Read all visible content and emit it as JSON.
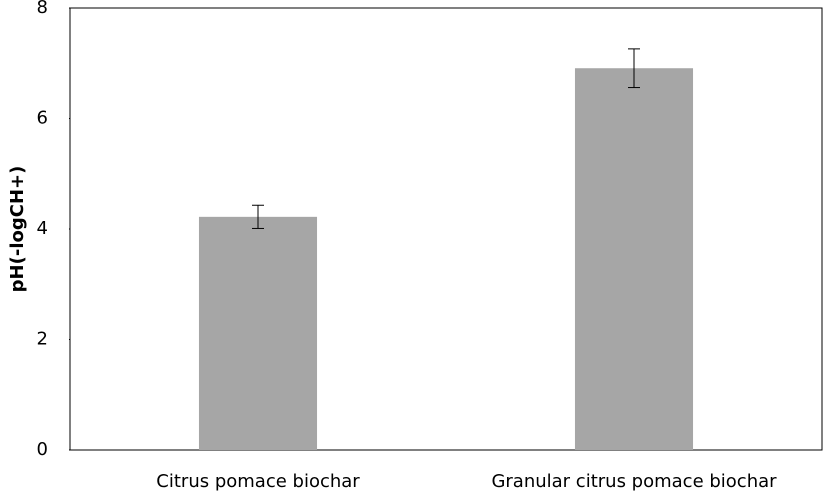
{
  "chart_data": {
    "type": "bar",
    "y_label": "pH(-logCH+)",
    "categories": [
      "Citrus pomace biochar",
      "Granular citrus pomace biochar"
    ],
    "values": [
      4.22,
      6.91
    ],
    "errors": [
      0.21,
      0.35
    ],
    "color": "#a6a6a6",
    "ylim": [
      0,
      8
    ],
    "yticks": [
      0,
      2,
      4,
      6,
      8
    ]
  }
}
